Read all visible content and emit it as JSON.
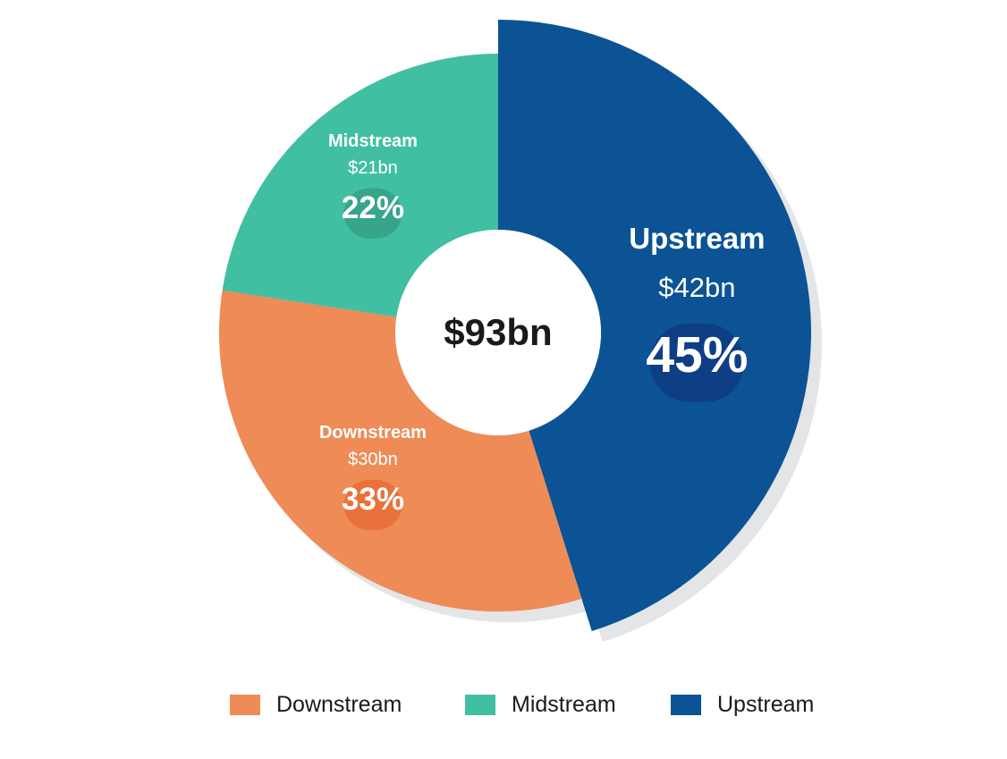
{
  "chart_data": {
    "type": "pie",
    "variant": "donut",
    "total_label": "$93bn",
    "slices": [
      {
        "name": "Upstream",
        "value": 42,
        "value_label": "$42bn",
        "percent_label": "45%",
        "percent": 45,
        "color": "#0b5394",
        "badge_color": "#0e3e84",
        "exploded": true
      },
      {
        "name": "Downstream",
        "value": 30,
        "value_label": "$30bn",
        "percent_label": "33%",
        "percent": 33,
        "color": "#ee8b57",
        "badge_color": "#e9713a",
        "exploded": false
      },
      {
        "name": "Midstream",
        "value": 21,
        "value_label": "$21bn",
        "percent_label": "22%",
        "percent": 22,
        "color": "#41bfa2",
        "badge_color": "#36a58a",
        "exploded": false
      }
    ],
    "legend": {
      "position": "bottom",
      "items": [
        {
          "label": "Downstream",
          "color": "#ee8b57"
        },
        {
          "label": "Midstream",
          "color": "#41bfa2"
        },
        {
          "label": "Upstream",
          "color": "#0b5394"
        }
      ]
    },
    "shadow_color": "#e3e5e7",
    "center_color": "#ffffff"
  }
}
